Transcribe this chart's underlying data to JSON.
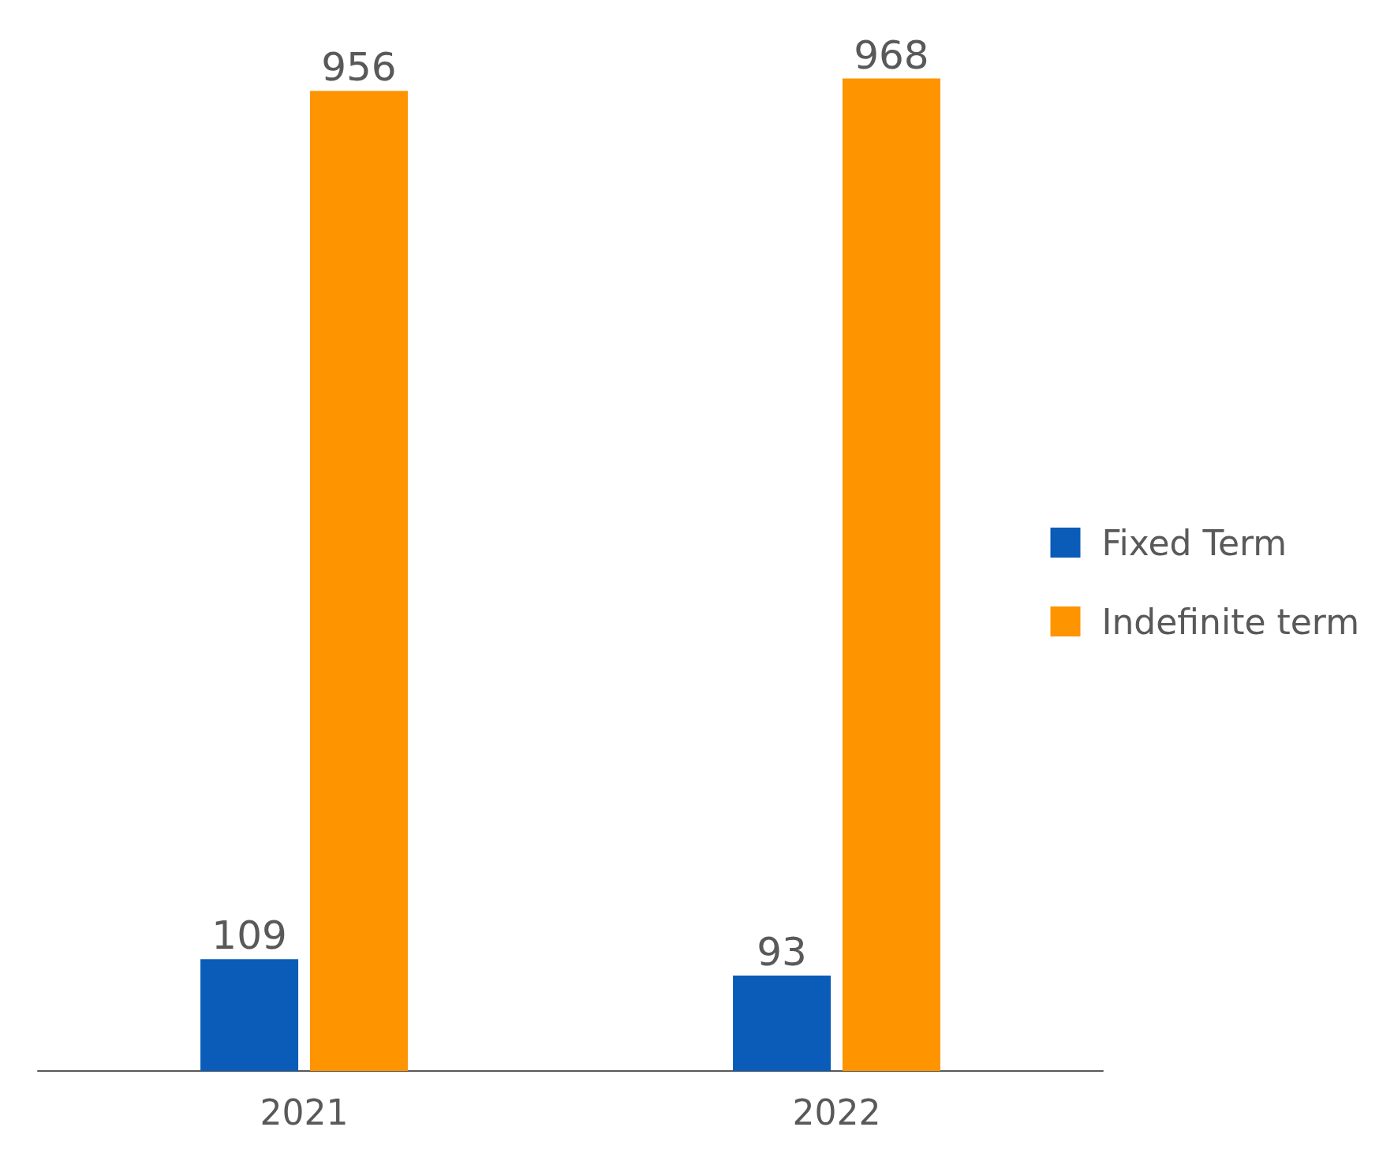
{
  "chart_data": {
    "type": "bar",
    "categories": [
      "2021",
      "2022"
    ],
    "series": [
      {
        "name": "Fixed Term",
        "color": "#0a5cb8",
        "values": [
          109,
          93
        ]
      },
      {
        "name": "Indefinite term",
        "color": "#fd9400",
        "values": [
          956,
          968
        ]
      }
    ],
    "data_labels": true,
    "legend": "right"
  }
}
